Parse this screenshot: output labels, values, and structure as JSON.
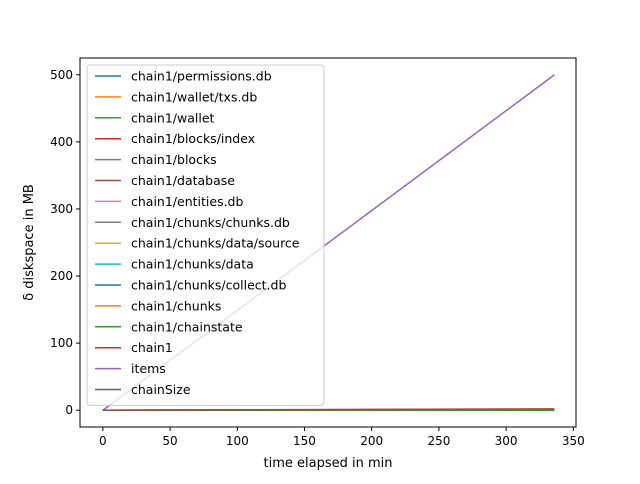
{
  "chart_data": {
    "type": "line",
    "title": "",
    "xlabel": "time elapsed in min",
    "ylabel": "δ diskspace in MB",
    "xlim": [
      -17,
      352
    ],
    "ylim": [
      -25,
      525
    ],
    "xticks": [
      0,
      50,
      100,
      150,
      200,
      250,
      300,
      350
    ],
    "yticks": [
      0,
      100,
      200,
      300,
      400,
      500
    ],
    "grid": false,
    "legend_position": "upper-left",
    "series": [
      {
        "name": "chain1/permissions.db",
        "color": "#1f77b4",
        "x": [
          0,
          336
        ],
        "y": [
          0,
          0
        ]
      },
      {
        "name": "chain1/wallet/txs.db",
        "color": "#ff7f0e",
        "x": [
          0,
          336
        ],
        "y": [
          0,
          0
        ]
      },
      {
        "name": "chain1/wallet",
        "color": "#2ca02c",
        "x": [
          0,
          336
        ],
        "y": [
          0,
          0
        ]
      },
      {
        "name": "chain1/blocks/index",
        "color": "#d62728",
        "x": [
          0,
          336
        ],
        "y": [
          0,
          0.5
        ]
      },
      {
        "name": "chain1/blocks",
        "color": "#9467bd",
        "x": [
          0,
          336
        ],
        "y": [
          0,
          1.5
        ]
      },
      {
        "name": "chain1/database",
        "color": "#8c564b",
        "x": [
          0,
          336
        ],
        "y": [
          0,
          0.5
        ]
      },
      {
        "name": "chain1/entities.db",
        "color": "#e377c2",
        "x": [
          0,
          336
        ],
        "y": [
          0,
          0
        ]
      },
      {
        "name": "chain1/chunks/chunks.db",
        "color": "#7f7f7f",
        "x": [
          0,
          336
        ],
        "y": [
          0,
          0
        ]
      },
      {
        "name": "chain1/chunks/data/source",
        "color": "#bcbd22",
        "x": [
          0,
          336
        ],
        "y": [
          0,
          0
        ]
      },
      {
        "name": "chain1/chunks/data",
        "color": "#17becf",
        "x": [
          0,
          336
        ],
        "y": [
          0,
          0
        ]
      },
      {
        "name": "chain1/chunks/collect.db",
        "color": "#1f77b4",
        "x": [
          0,
          336
        ],
        "y": [
          0,
          0
        ]
      },
      {
        "name": "chain1/chunks",
        "color": "#ff7f0e",
        "x": [
          0,
          336
        ],
        "y": [
          0,
          0
        ]
      },
      {
        "name": "chain1/chainstate",
        "color": "#2ca02c",
        "x": [
          0,
          336
        ],
        "y": [
          0,
          0
        ]
      },
      {
        "name": "chain1",
        "color": "#d62728",
        "x": [
          0,
          336
        ],
        "y": [
          0,
          2
        ]
      },
      {
        "name": "items",
        "color": "#9467bd",
        "x": [
          0,
          336
        ],
        "y": [
          0,
          500
        ]
      },
      {
        "name": "chainSize",
        "color": "#8c564b",
        "x": [
          0,
          336
        ],
        "y": [
          0,
          1.5
        ]
      }
    ]
  }
}
